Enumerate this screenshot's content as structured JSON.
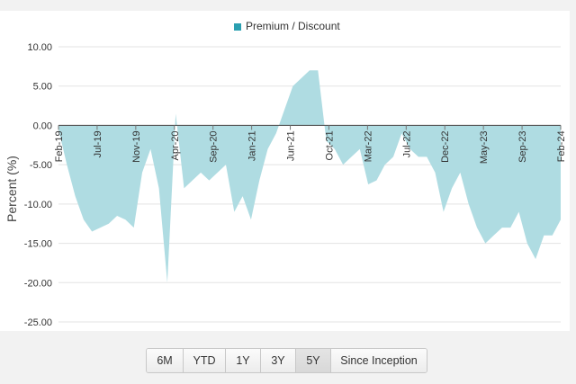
{
  "chart_data": {
    "type": "area",
    "legend": [
      "Premium / Discount"
    ],
    "ylabel": "Percent (%)",
    "ylim": [
      -25,
      10
    ],
    "yticks": [
      "10.00",
      "5.00",
      "0.00",
      "-5.00",
      "-10.00",
      "-15.00",
      "-20.00",
      "-25.00"
    ],
    "xtick_labels": [
      "Feb-19",
      "Jul-19",
      "Nov-19",
      "Apr-20",
      "Sep-20",
      "Jan-21",
      "Jun-21",
      "Oct-21",
      "Mar-22",
      "Jul-22",
      "Dec-22",
      "May-23",
      "Sep-23",
      "Feb-24"
    ],
    "legend_position": "top-center",
    "grid": "horizontal",
    "fill_color": "#afdce2",
    "series": [
      {
        "name": "Premium / Discount",
        "x": [
          "2019-02",
          "2019-03",
          "2019-04",
          "2019-05",
          "2019-06",
          "2019-07",
          "2019-08",
          "2019-09",
          "2019-10",
          "2019-11",
          "2019-12",
          "2020-01",
          "2020-02",
          "2020-03",
          "2020-04",
          "2020-05",
          "2020-06",
          "2020-07",
          "2020-08",
          "2020-09",
          "2020-10",
          "2020-11",
          "2020-12",
          "2021-01",
          "2021-02",
          "2021-03",
          "2021-04",
          "2021-05",
          "2021-06",
          "2021-07",
          "2021-08",
          "2021-09",
          "2021-10",
          "2021-11",
          "2021-12",
          "2022-01",
          "2022-02",
          "2022-03",
          "2022-04",
          "2022-05",
          "2022-06",
          "2022-07",
          "2022-08",
          "2022-09",
          "2022-10",
          "2022-11",
          "2022-12",
          "2023-01",
          "2023-02",
          "2023-03",
          "2023-04",
          "2023-05",
          "2023-06",
          "2023-07",
          "2023-08",
          "2023-09",
          "2023-10",
          "2023-11",
          "2023-12",
          "2024-01",
          "2024-02"
        ],
        "values": [
          -0.5,
          -5,
          -9,
          -12,
          -13.5,
          -13,
          -12.5,
          -11.5,
          -12,
          -13,
          -6,
          -3,
          -8,
          -20,
          1.5,
          -8,
          -7,
          -6,
          -7,
          -6,
          -5,
          -11,
          -9,
          -12,
          -7,
          -3,
          -1,
          2,
          5,
          6,
          7,
          7,
          -2,
          -3,
          -5,
          -4,
          -3,
          -7.5,
          -7,
          -5,
          -4,
          -1,
          -3,
          -4,
          -4,
          -6,
          -11,
          -8,
          -6,
          -10,
          -13,
          -15,
          -14,
          -13,
          -13,
          -11,
          -15,
          -17,
          -14,
          -14,
          -12
        ]
      }
    ]
  },
  "range_buttons": {
    "labels": [
      "6M",
      "YTD",
      "1Y",
      "3Y",
      "5Y",
      "Since Inception"
    ],
    "active": "5Y"
  }
}
